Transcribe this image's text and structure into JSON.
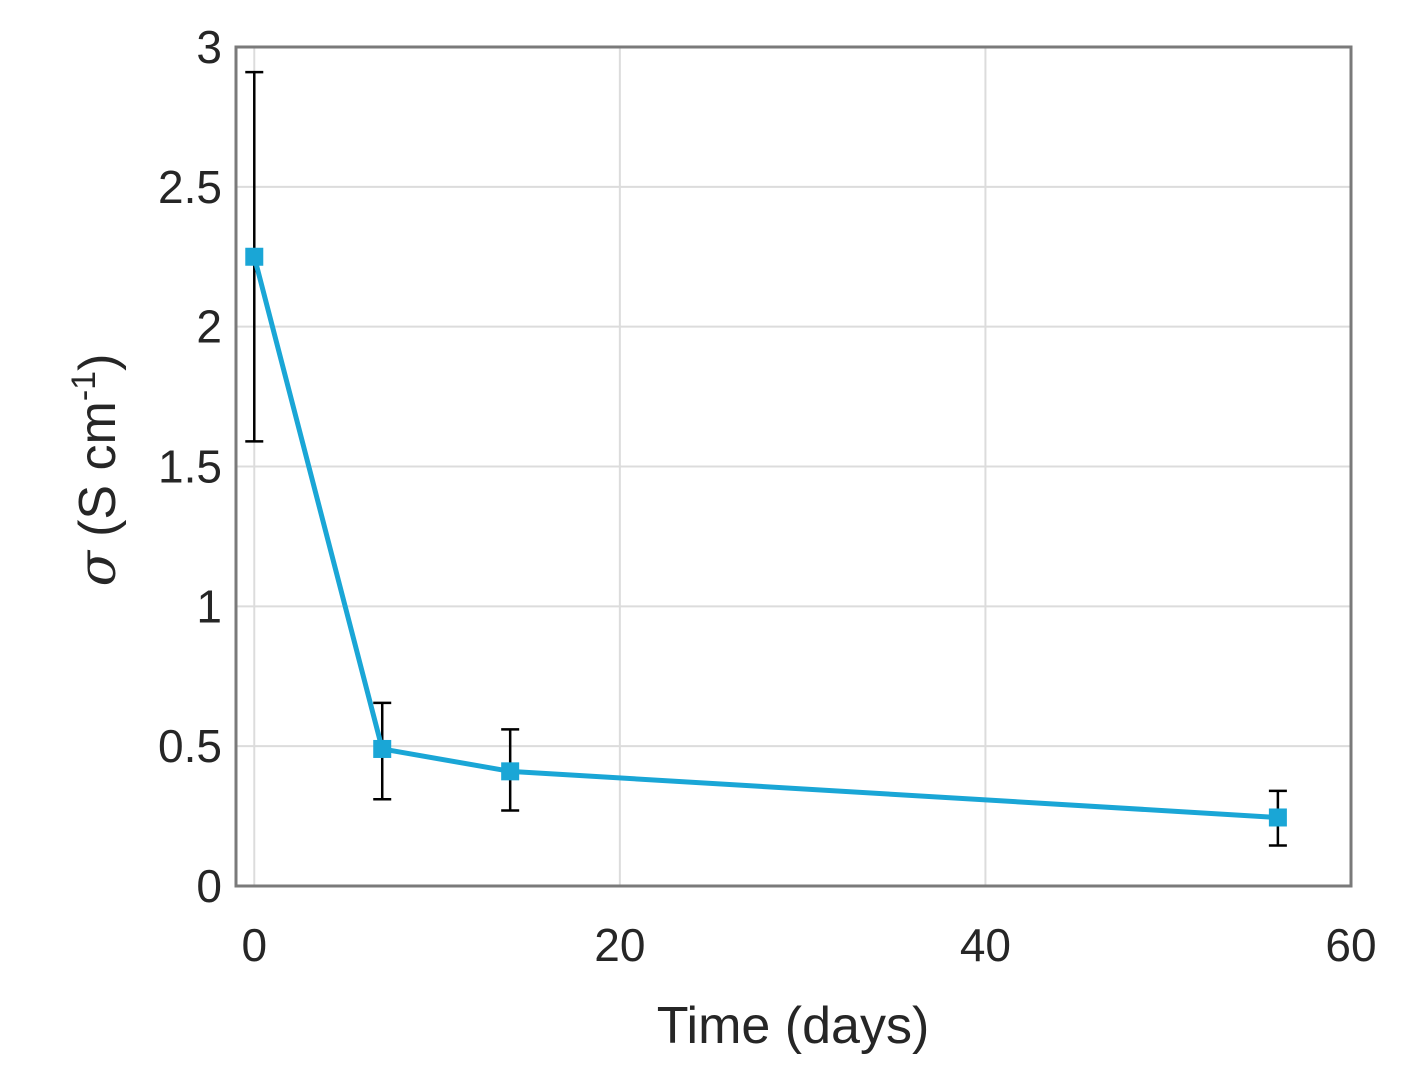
{
  "chart_data": {
    "type": "line",
    "xlabel": "Time (days)",
    "ylabel": {
      "symbol": "σ",
      "unit_prefix": "(S cm",
      "superscript": "-1",
      "unit_suffix": ")"
    },
    "xlim": [
      -1,
      60
    ],
    "ylim": [
      0,
      3
    ],
    "xticks": [
      0,
      20,
      40,
      60
    ],
    "yticks": [
      0,
      0.5,
      1,
      1.5,
      2,
      2.5,
      3
    ],
    "xtick_labels": [
      "0",
      "20",
      "40",
      "60"
    ],
    "ytick_labels": [
      "0",
      "0.5",
      "1",
      "1.5",
      "2",
      "2.5",
      "3"
    ],
    "grid": true,
    "series": [
      {
        "color": "#1aa6d6",
        "marker": "square",
        "x": [
          0,
          7,
          14,
          56
        ],
        "y": [
          2.25,
          0.49,
          0.41,
          0.245
        ],
        "err_low": [
          1.59,
          0.31,
          0.27,
          0.145
        ],
        "err_high": [
          2.91,
          0.655,
          0.56,
          0.34
        ]
      }
    ]
  }
}
